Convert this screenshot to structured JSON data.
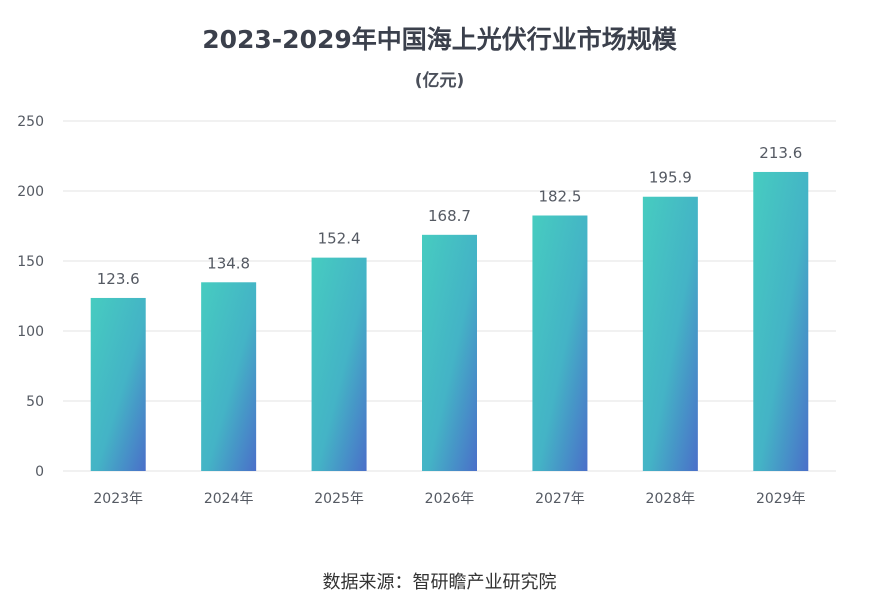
{
  "chart_data": {
    "type": "bar",
    "title": "2023-2029年中国海上光伏行业市场规模",
    "subtitle": "(亿元)",
    "categories": [
      "2023年",
      "2024年",
      "2025年",
      "2026年",
      "2027年",
      "2028年",
      "2029年"
    ],
    "values": [
      123.6,
      134.8,
      152.4,
      168.7,
      182.5,
      195.9,
      213.6
    ],
    "data_labels": [
      "123.6",
      "134.8",
      "152.4",
      "168.7",
      "182.5",
      "195.9",
      "213.6"
    ],
    "ylim": [
      0,
      250
    ],
    "yticks": [
      0,
      50,
      100,
      150,
      200,
      250
    ],
    "grid": true,
    "legend": "none",
    "colors": {
      "bar_top": "#46CCC0",
      "bar_bottom": "#4A6FC9",
      "grid": "#e3e3e3"
    }
  },
  "footer": {
    "source": "数据来源：智研瞻产业研究院"
  }
}
